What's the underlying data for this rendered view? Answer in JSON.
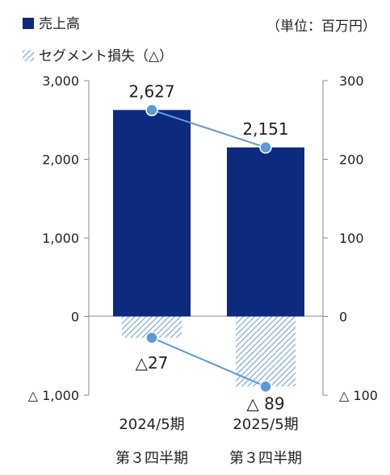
{
  "chart_data": {
    "type": "bar",
    "unit_label": "（単位：百万円）",
    "categories": [
      {
        "period": "2024/5期",
        "quarter": "第３四半期"
      },
      {
        "period": "2025/5期",
        "quarter": "第３四半期"
      }
    ],
    "series": [
      {
        "name": "売上高",
        "type": "bar",
        "axis": "left",
        "color": "#0d2a7e",
        "values": [
          2627,
          2151
        ],
        "labels": [
          "2,627",
          "2,151"
        ]
      },
      {
        "name": "セグメント損失（△）",
        "type": "bar",
        "axis": "right",
        "pattern": "diagonal-hatch",
        "color": "#7fa8d6",
        "values": [
          -27,
          -89
        ],
        "labels": [
          "△27",
          "△ 89"
        ]
      }
    ],
    "line_color": "#5b9bd5",
    "left_axis": {
      "range": [
        -1000,
        3000
      ],
      "ticks": [
        3000,
        2000,
        1000,
        0,
        -1000
      ],
      "tick_labels": [
        "3,000",
        "2,000",
        "1,000",
        "0",
        "△ 1,000"
      ]
    },
    "right_axis": {
      "range": [
        -100,
        300
      ],
      "ticks": [
        300,
        200,
        100,
        0,
        -100
      ],
      "tick_labels": [
        "300",
        "200",
        "100",
        "0",
        "△ 100"
      ]
    },
    "grid": false,
    "legend_position": "top-left"
  }
}
